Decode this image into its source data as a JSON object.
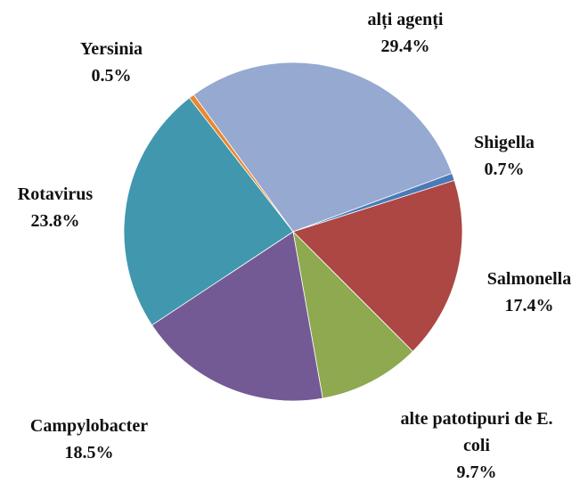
{
  "chart_data": {
    "type": "pie",
    "categories": [
      "alți agenți",
      "Shigella",
      "Salmonella",
      "alte patotipuri de E. coli",
      "Campylobacter",
      "Rotavirus",
      "Yersinia"
    ],
    "values": [
      29.4,
      0.7,
      17.4,
      9.7,
      18.5,
      23.8,
      0.5
    ],
    "value_labels": [
      "29.4%",
      "0.7%",
      "17.4%",
      "9.7%",
      "18.5%",
      "23.8%",
      "0.5%"
    ],
    "colors": [
      "#95a9d1",
      "#4a7ab8",
      "#ac4744",
      "#8ea94f",
      "#735a95",
      "#4197ae",
      "#e8882f"
    ]
  }
}
